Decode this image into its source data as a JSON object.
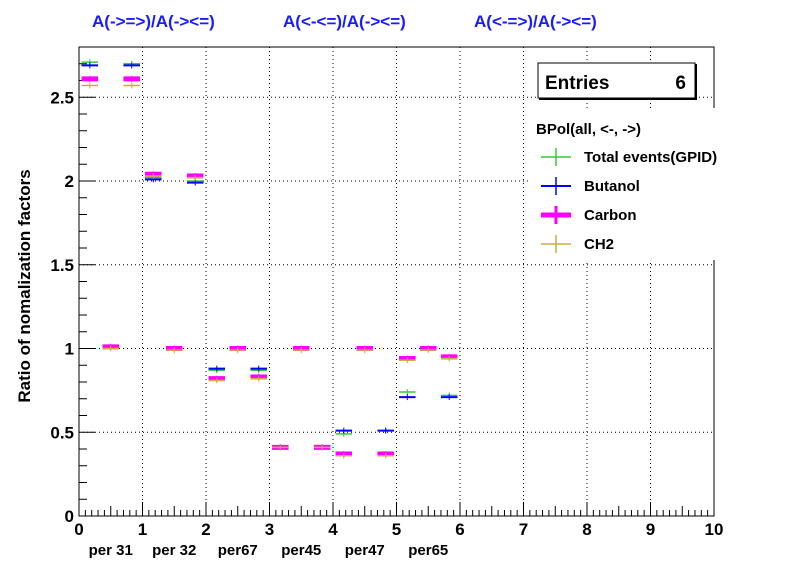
{
  "chart_data": {
    "type": "scatter",
    "titles": [
      "A(->=>)/A(-><=)",
      "A(<-<=)/A(-><=)",
      "A(<-=>)/A(-><=)"
    ],
    "ylabel": "Ratio of nomalization factors",
    "xlim": [
      0,
      10
    ],
    "ylim": [
      0,
      2.8
    ],
    "x_ticks": [
      "0",
      "1",
      "2",
      "3",
      "4",
      "5",
      "6",
      "7",
      "8",
      "9",
      "10"
    ],
    "y_ticks": [
      "0",
      "0.5",
      "1",
      "1.5",
      "2",
      "2.5"
    ],
    "y_tick_values": [
      0,
      0.5,
      1,
      1.5,
      2,
      2.5
    ],
    "bin_labels": [
      "per 31",
      "per 32",
      "per67",
      "per45",
      "per47",
      "per65"
    ],
    "grid": true,
    "stats": {
      "label": "Entries",
      "value": "6"
    },
    "legend": {
      "title": "BPol(all, <-, ->)",
      "placement": "top-right",
      "entries": [
        {
          "name": "Total events(GPID)",
          "color": "#33cc33"
        },
        {
          "name": "Butanol",
          "color": "#0000ff"
        },
        {
          "name": "Carbon",
          "color": "#ff00ff"
        },
        {
          "name": "CH2",
          "color": "#ccaa44"
        }
      ]
    },
    "series": [
      {
        "name": "Total events(GPID)",
        "color": "#33cc33",
        "x": [
          0.17,
          0.83,
          1.17,
          1.83,
          2.17,
          2.83,
          3.17,
          3.83,
          4.17,
          4.83,
          5.17,
          5.83
        ],
        "y": [
          2.71,
          2.7,
          2.02,
          2.0,
          0.87,
          0.87,
          0.41,
          0.41,
          0.49,
          0.51,
          0.74,
          0.72
        ]
      },
      {
        "name": "Butanol",
        "color": "#0000ff",
        "x": [
          0.17,
          0.83,
          1.17,
          1.83,
          2.17,
          2.83,
          3.17,
          3.83,
          4.17,
          4.83,
          5.17,
          5.83
        ],
        "y": [
          2.69,
          2.69,
          2.01,
          1.99,
          0.88,
          0.88,
          0.41,
          0.41,
          0.51,
          0.51,
          0.71,
          0.71
        ]
      },
      {
        "name": "Carbon",
        "color": "#ff00ff",
        "x": [
          0.17,
          0.5,
          0.83,
          1.17,
          1.5,
          1.83,
          2.17,
          2.5,
          2.83,
          3.17,
          3.5,
          3.83,
          4.17,
          4.5,
          4.83,
          5.17,
          5.5,
          5.83
        ],
        "y": [
          2.61,
          1.01,
          2.61,
          2.04,
          1.0,
          2.03,
          0.82,
          1.0,
          0.83,
          0.41,
          1.0,
          0.41,
          0.37,
          1.0,
          0.37,
          0.94,
          1.0,
          0.95
        ]
      },
      {
        "name": "CH2",
        "color": "#ccaa44",
        "x": [
          0.17,
          0.5,
          0.83,
          1.17,
          1.5,
          1.83,
          2.17,
          2.5,
          2.83,
          3.17,
          3.5,
          3.83,
          4.17,
          4.5,
          4.83,
          5.17,
          5.5,
          5.83
        ],
        "y": [
          2.57,
          1.0,
          2.57,
          2.03,
          0.99,
          2.02,
          0.81,
          0.99,
          0.82,
          0.41,
          0.99,
          0.41,
          0.36,
          0.99,
          0.36,
          0.93,
          0.99,
          0.94
        ]
      }
    ]
  }
}
